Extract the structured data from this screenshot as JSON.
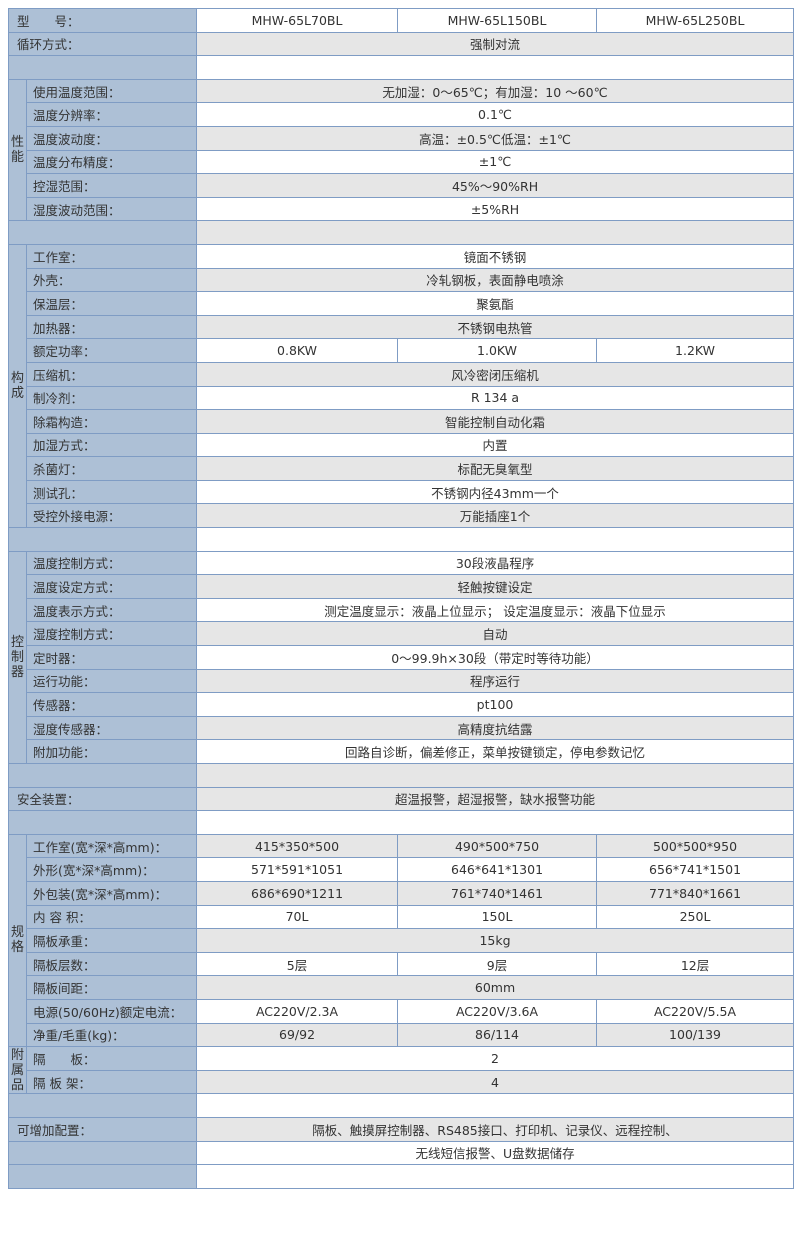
{
  "groups": [
    {
      "title": "",
      "rows": [
        {
          "label": "型　　号：",
          "values": [
            "MHW-65L70BL",
            "MHW-65L150BL",
            "MHW-65L250BL"
          ]
        },
        {
          "label": "循环方式：",
          "value": "强制对流"
        },
        {
          "label": "",
          "value": ""
        }
      ]
    },
    {
      "title": "性能",
      "rows": [
        {
          "label": "使用温度范围：",
          "value": "无加湿：0～65℃；有加湿：10 ～60℃"
        },
        {
          "label": "温度分辨率：",
          "value": "0.1℃"
        },
        {
          "label": "温度波动度：",
          "value": "高温：±0.5℃低温：±1℃"
        },
        {
          "label": "温度分布精度：",
          "value": "±1℃"
        },
        {
          "label": "控湿范围：",
          "value": "45%～90%RH"
        },
        {
          "label": "湿度波动范围：",
          "value": "±5%RH"
        }
      ]
    },
    {
      "title": "",
      "rows": [
        {
          "label": "",
          "value": ""
        }
      ]
    },
    {
      "title": "构成",
      "rows": [
        {
          "label": "工作室：",
          "value": "镜面不锈钢"
        },
        {
          "label": "外壳：",
          "value": "冷轧钢板，表面静电喷涂"
        },
        {
          "label": "保温层：",
          "value": "聚氨酯"
        },
        {
          "label": "加热器：",
          "value": "不锈钢电热管"
        },
        {
          "label": "额定功率：",
          "values": [
            "0.8KW",
            "1.0KW",
            "1.2KW"
          ]
        },
        {
          "label": "压缩机：",
          "value": "风冷密闭压缩机"
        },
        {
          "label": "制冷剂：",
          "value": "R 134 a"
        },
        {
          "label": "除霜构造：",
          "value": "智能控制自动化霜"
        },
        {
          "label": "加湿方式：",
          "value": "内置"
        },
        {
          "label": "杀菌灯：",
          "value": "标配无臭氧型"
        },
        {
          "label": "测试孔：",
          "value": "不锈钢内径43mm一个"
        },
        {
          "label": "受控外接电源：",
          "value": "万能插座1个"
        }
      ]
    },
    {
      "title": "",
      "rows": [
        {
          "label": "",
          "value": ""
        }
      ]
    },
    {
      "title": "控制器",
      "rows": [
        {
          "label": "温度控制方式：",
          "value": "30段液晶程序"
        },
        {
          "label": "温度设定方式：",
          "value": "轻触按键设定"
        },
        {
          "label": "温度表示方式：",
          "value": "测定温度显示：液晶上位显示； 设定温度显示：液晶下位显示"
        },
        {
          "label": "湿度控制方式：",
          "value": "自动"
        },
        {
          "label": "定时器：",
          "value": "0～99.9h×30段（带定时等待功能）"
        },
        {
          "label": "运行功能：",
          "value": "程序运行"
        },
        {
          "label": "传感器：",
          "value": "pt100"
        },
        {
          "label": "湿度传感器：",
          "value": "高精度抗结露"
        },
        {
          "label": "附加功能：",
          "value": "回路自诊断，偏差修正，菜单按键锁定，停电参数记忆"
        }
      ]
    },
    {
      "title": "",
      "rows": [
        {
          "label": "",
          "value": ""
        },
        {
          "label": "安全装置：",
          "value": "超温报警，超湿报警，缺水报警功能"
        },
        {
          "label": "",
          "value": ""
        }
      ]
    },
    {
      "title": "规格",
      "rows": [
        {
          "label": "工作室(宽*深*高mm)：",
          "values": [
            "415*350*500",
            "490*500*750",
            "500*500*950"
          ]
        },
        {
          "label": " 外形(宽*深*高mm)：",
          "values": [
            "571*591*1051",
            "646*641*1301",
            "656*741*1501"
          ]
        },
        {
          "label": "外包装(宽*深*高mm)：",
          "values": [
            "686*690*1211",
            "761*740*1461",
            "771*840*1661"
          ]
        },
        {
          "label": "内 容 积：",
          "values": [
            "70L",
            "150L",
            "250L"
          ]
        },
        {
          "label": "隔板承重：",
          "value": "15kg"
        },
        {
          "label": "隔板层数：",
          "values": [
            "5层",
            "9层",
            "12层"
          ]
        },
        {
          "label": "隔板间距：",
          "value": "60mm"
        },
        {
          "label": "电源(50/60Hz)额定电流：",
          "values": [
            "AC220V/2.3A",
            "AC220V/3.6A",
            "AC220V/5.5A"
          ]
        },
        {
          "label": "净重/毛重(kg)：",
          "values": [
            "69/92",
            "86/114",
            "100/139"
          ]
        }
      ]
    },
    {
      "title": "附属品",
      "rows": [
        {
          "label": "隔　　板：",
          "value": "2"
        },
        {
          "label": "隔 板 架：",
          "value": "4"
        }
      ]
    },
    {
      "title": "",
      "rows": [
        {
          "label": "",
          "value": ""
        },
        {
          "label": "可增加配置：",
          "value": "隔板、触摸屏控制器、RS485接口、打印机、记录仪、远程控制、"
        },
        {
          "label": "",
          "value": "无线短信报警、U盘数据储存"
        },
        {
          "label": "",
          "value": ""
        }
      ]
    }
  ],
  "colors": {
    "label_bg": "#adc0d6",
    "border": "#7f9cc4",
    "row_alt": "#e6e6e6"
  }
}
